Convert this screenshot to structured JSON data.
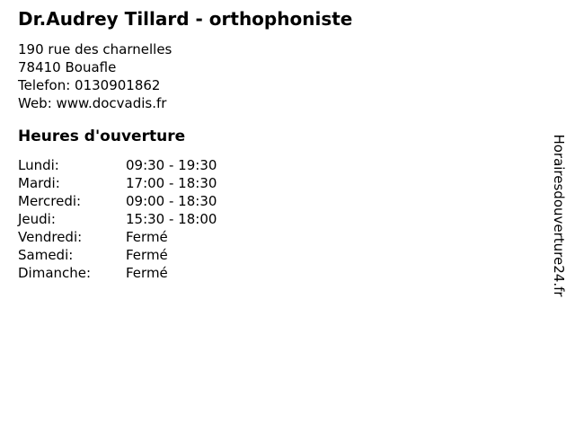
{
  "header": {
    "title": "Dr.Audrey Tillard - orthophoniste"
  },
  "contact": {
    "street": "190 rue des charnelles",
    "city": "78410 Bouafle",
    "phone": "Telefon: 0130901862",
    "web": "Web: www.docvadis.fr"
  },
  "hours": {
    "heading": "Heures d'ouverture",
    "rows": [
      {
        "day": "Lundi:",
        "time": "09:30 - 19:30"
      },
      {
        "day": "Mardi:",
        "time": "17:00 - 18:30"
      },
      {
        "day": "Mercredi:",
        "time": "09:00 - 18:30"
      },
      {
        "day": "Jeudi:",
        "time": "15:30 - 18:00"
      },
      {
        "day": "Vendredi:",
        "time": "Fermé"
      },
      {
        "day": "Samedi:",
        "time": "Fermé"
      },
      {
        "day": "Dimanche:",
        "time": "Fermé"
      }
    ]
  },
  "watermark": {
    "text": "Horairesdouverture24.fr"
  },
  "colors": {
    "text": "#000000",
    "background": "#ffffff"
  }
}
